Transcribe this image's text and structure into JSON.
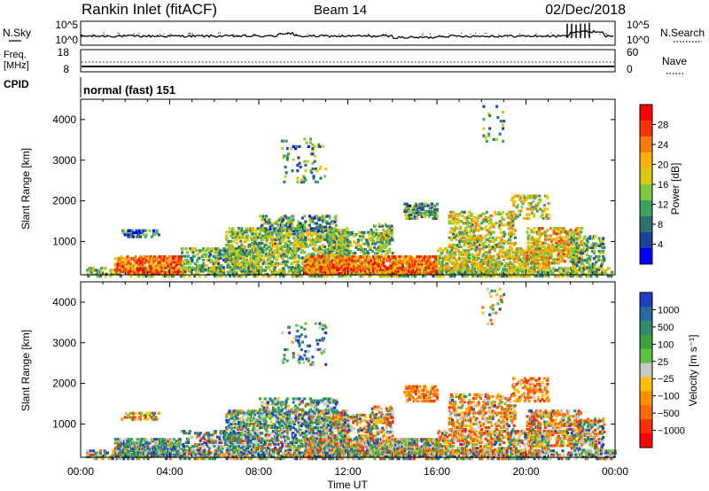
{
  "header": {
    "station": "Rankin Inlet (fitACF)",
    "beam": "Beam 14",
    "date": "02/Dec/2018"
  },
  "noise_panel": {
    "left_label": "N.Sky",
    "right_label": "N.Search",
    "left_ticks": [
      "10^5",
      "10^0"
    ],
    "right_ticks": [
      "10^5",
      "10^0"
    ]
  },
  "freq_panel": {
    "left_label_1": "Freq.",
    "left_label_2": "[MHz]",
    "right_label": "Nave",
    "left_ticks": [
      "18",
      "8"
    ],
    "right_ticks": [
      "60",
      "0"
    ]
  },
  "cpid_panel": {
    "label": "CPID",
    "value": "normal (fast) 151"
  },
  "chart_data": [
    {
      "type": "heatmap",
      "name": "power",
      "ylabel": "Slant Range [km]",
      "xlabel": "Time UT",
      "ylim": [
        180,
        4500
      ],
      "y_ticks": [
        "4000",
        "3000",
        "2000",
        "1000"
      ],
      "y_tick_values": [
        4000,
        3000,
        2000,
        1000
      ],
      "x_ticks": [
        "00:00",
        "04:00",
        "08:00",
        "12:00",
        "16:00",
        "20:00",
        "00:00"
      ],
      "x_tick_hours": [
        0,
        4,
        8,
        12,
        16,
        20,
        24
      ],
      "colorbar": {
        "label": "Power [dB]",
        "labels": [
          "28",
          "24",
          "20",
          "16",
          "12",
          "8",
          "4"
        ],
        "colors": [
          "#ff0000",
          "#ff3300",
          "#ff7a00",
          "#ffb000",
          "#d8c800",
          "#7ec840",
          "#3fa060",
          "#2f7070",
          "#2040a0",
          "#0000ff"
        ]
      }
    },
    {
      "type": "heatmap",
      "name": "velocity",
      "ylabel": "Slant Range [km]",
      "xlabel": "Time UT",
      "ylim": [
        180,
        4500
      ],
      "y_ticks": [
        "4000",
        "3000",
        "2000",
        "1000"
      ],
      "y_tick_values": [
        4000,
        3000,
        2000,
        1000
      ],
      "x_ticks": [
        "00:00",
        "04:00",
        "08:00",
        "12:00",
        "16:00",
        "20:00",
        "00:00"
      ],
      "x_tick_hours": [
        0,
        4,
        8,
        12,
        16,
        20,
        24
      ],
      "colorbar": {
        "label": "Velocity [m s⁻¹]",
        "labels": [
          "1000",
          "500",
          "100",
          "25",
          "−25",
          "−100",
          "−500",
          "−1000"
        ],
        "colors": [
          "#1f3fbf",
          "#2a6aa0",
          "#2f8a70",
          "#3fa040",
          "#60c040",
          "#c8c8c8",
          "#ffc000",
          "#ff9000",
          "#ff6a00",
          "#ff3000",
          "#ff0000"
        ]
      }
    }
  ]
}
